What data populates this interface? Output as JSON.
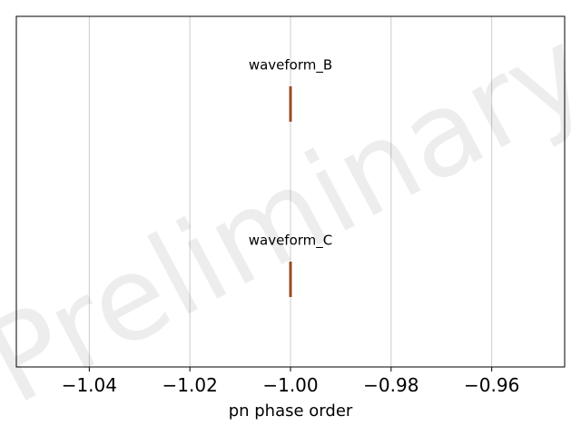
{
  "chart_data": {
    "type": "box",
    "watermark": "Preliminary",
    "xlabel": "pn phase order",
    "ylabel": "",
    "xlim": [
      -1.0545,
      -0.9455
    ],
    "xticks": [
      -1.04,
      -1.02,
      -1.0,
      -0.98,
      -0.96
    ],
    "xtick_labels": [
      "−1.04",
      "−1.02",
      "−1.00",
      "−0.98",
      "−0.96"
    ],
    "grid": "vertical",
    "box_color": "#a0522d",
    "series": [
      {
        "name": "waveform_B",
        "min": -1.0,
        "q1": -1.0,
        "median": -1.0,
        "q3": -1.0,
        "max": -1.0
      },
      {
        "name": "waveform_C",
        "min": -1.0,
        "q1": -1.0,
        "median": -1.0,
        "q3": -1.0,
        "max": -1.0
      }
    ]
  }
}
